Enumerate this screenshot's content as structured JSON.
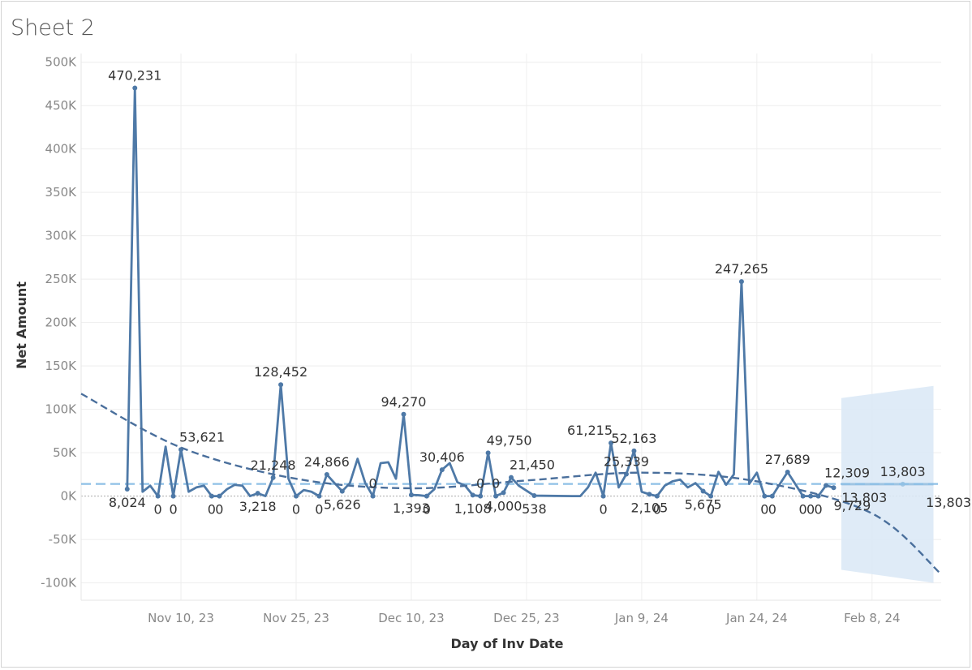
{
  "sheet": {
    "title": "Sheet 2"
  },
  "colors": {
    "line": "#4e79a7",
    "trend": "#4a6f9c",
    "forecast_band": "#dbe9f6",
    "forecast_line": "#9fc5e3",
    "reference_line": "#8ec0e6",
    "grid": "#eeeeee",
    "zero_line": "#aaaaaa"
  },
  "chart_data": {
    "type": "line",
    "title": "",
    "xlabel": "Day of Inv Date",
    "ylabel": "Net Amount",
    "ylim": [
      -120000,
      510000
    ],
    "xlim": [
      "2023-10-28",
      "2024-02-17"
    ],
    "y_ticks": [
      -100000,
      -50000,
      0,
      50000,
      100000,
      150000,
      200000,
      250000,
      300000,
      350000,
      400000,
      450000,
      500000
    ],
    "y_tick_labels": [
      "-100K",
      "-50K",
      "0K",
      "50K",
      "100K",
      "150K",
      "200K",
      "250K",
      "300K",
      "350K",
      "400K",
      "450K",
      "500K"
    ],
    "x_ticks": [
      "2023-11-10",
      "2023-11-25",
      "2023-12-10",
      "2023-12-25",
      "2024-01-09",
      "2024-01-24",
      "2024-02-08"
    ],
    "x_tick_labels": [
      "Nov 10, 23",
      "Nov 25, 23",
      "Dec 10, 23",
      "Dec 25, 23",
      "Jan 9, 24",
      "Jan 24, 24",
      "Feb 8, 24"
    ],
    "grid": true,
    "reference_line": {
      "value": 14000,
      "style": "dashed"
    },
    "series": [
      {
        "values": [
          [
            "2023-11-03",
            8024
          ],
          [
            "2023-11-04",
            470231
          ],
          [
            "2023-11-05",
            5000
          ],
          [
            "2023-11-06",
            12000
          ],
          [
            "2023-11-07",
            0
          ],
          [
            "2023-11-08",
            57000
          ],
          [
            "2023-11-09",
            0
          ],
          [
            "2023-11-10",
            53621
          ],
          [
            "2023-11-11",
            5000
          ],
          [
            "2023-11-12",
            10000
          ],
          [
            "2023-11-13",
            12000
          ],
          [
            "2023-11-14",
            0
          ],
          [
            "2023-11-15",
            0
          ],
          [
            "2023-11-16",
            8000
          ],
          [
            "2023-11-17",
            13000
          ],
          [
            "2023-11-18",
            12000
          ],
          [
            "2023-11-19",
            0
          ],
          [
            "2023-11-20",
            3218
          ],
          [
            "2023-11-21",
            0
          ],
          [
            "2023-11-22",
            21248
          ],
          [
            "2023-11-23",
            128452
          ],
          [
            "2023-11-24",
            20000
          ],
          [
            "2023-11-25",
            0
          ],
          [
            "2023-11-26",
            7000
          ],
          [
            "2023-11-27",
            5000
          ],
          [
            "2023-11-28",
            0
          ],
          [
            "2023-11-29",
            24866
          ],
          [
            "2023-11-30",
            15000
          ],
          [
            "2023-12-01",
            5626
          ],
          [
            "2023-12-02",
            15000
          ],
          [
            "2023-12-03",
            43000
          ],
          [
            "2023-12-04",
            15000
          ],
          [
            "2023-12-05",
            0
          ],
          [
            "2023-12-06",
            38000
          ],
          [
            "2023-12-07",
            39000
          ],
          [
            "2023-12-08",
            20000
          ],
          [
            "2023-12-09",
            94270
          ],
          [
            "2023-12-10",
            1393
          ],
          [
            "2023-12-11",
            1000
          ],
          [
            "2023-12-12",
            0
          ],
          [
            "2023-12-13",
            8000
          ],
          [
            "2023-12-14",
            30406
          ],
          [
            "2023-12-15",
            38000
          ],
          [
            "2023-12-16",
            16000
          ],
          [
            "2023-12-17",
            12000
          ],
          [
            "2023-12-18",
            1108
          ],
          [
            "2023-12-19",
            0
          ],
          [
            "2023-12-20",
            49750
          ],
          [
            "2023-12-21",
            0
          ],
          [
            "2023-12-22",
            4000
          ],
          [
            "2023-12-23",
            21450
          ],
          [
            "2023-12-24",
            12000
          ],
          [
            "2023-12-26",
            538
          ],
          [
            "2023-12-31",
            0
          ],
          [
            "2024-01-01",
            0
          ],
          [
            "2024-01-02",
            10000
          ],
          [
            "2024-01-03",
            27000
          ],
          [
            "2024-01-04",
            0
          ],
          [
            "2024-01-05",
            61215
          ],
          [
            "2024-01-06",
            10000
          ],
          [
            "2024-01-07",
            25339
          ],
          [
            "2024-01-08",
            52163
          ],
          [
            "2024-01-09",
            5000
          ],
          [
            "2024-01-10",
            2105
          ],
          [
            "2024-01-11",
            0
          ],
          [
            "2024-01-12",
            12000
          ],
          [
            "2024-01-13",
            17000
          ],
          [
            "2024-01-14",
            19000
          ],
          [
            "2024-01-15",
            10000
          ],
          [
            "2024-01-16",
            15000
          ],
          [
            "2024-01-17",
            5675
          ],
          [
            "2024-01-18",
            0
          ],
          [
            "2024-01-19",
            28000
          ],
          [
            "2024-01-20",
            13000
          ],
          [
            "2024-01-21",
            25000
          ],
          [
            "2024-01-22",
            247265
          ],
          [
            "2024-01-23",
            14000
          ],
          [
            "2024-01-24",
            27000
          ],
          [
            "2024-01-25",
            0
          ],
          [
            "2024-01-26",
            0
          ],
          [
            "2024-01-27",
            14000
          ],
          [
            "2024-01-28",
            27689
          ],
          [
            "2024-01-29",
            14000
          ],
          [
            "2024-01-30",
            0
          ],
          [
            "2024-01-31",
            0
          ],
          [
            "2024-02-01",
            0
          ],
          [
            "2024-02-02",
            12309
          ],
          [
            "2024-02-03",
            9729
          ]
        ]
      }
    ],
    "forecast": {
      "values": [
        [
          "2024-02-04",
          13803
        ],
        [
          "2024-02-16",
          13803
        ]
      ],
      "upper": [
        [
          "2024-02-04",
          113000
        ],
        [
          "2024-02-16",
          127000
        ]
      ],
      "lower": [
        [
          "2024-02-04",
          -85000
        ],
        [
          "2024-02-16",
          -100000
        ]
      ]
    },
    "trend_line": {
      "type": "polynomial",
      "values": [
        [
          "2023-10-28",
          118000
        ],
        [
          "2023-11-10",
          56000
        ],
        [
          "2023-11-25",
          20000
        ],
        [
          "2023-12-10",
          9000
        ],
        [
          "2023-12-25",
          18000
        ],
        [
          "2024-01-09",
          27000
        ],
        [
          "2024-01-24",
          17000
        ],
        [
          "2024-02-08",
          -20000
        ],
        [
          "2024-02-17",
          -90000
        ]
      ]
    },
    "data_labels": [
      {
        "x": "2023-11-03",
        "y": 8024,
        "text": "8,024",
        "pos": "below"
      },
      {
        "x": "2023-11-04",
        "y": 470231,
        "text": "470,231",
        "pos": "above"
      },
      {
        "x": "2023-11-07",
        "y": 0,
        "text": "0",
        "pos": "below"
      },
      {
        "x": "2023-11-09",
        "y": 0,
        "text": "0",
        "pos": "below"
      },
      {
        "x": "2023-11-10",
        "y": 53621,
        "text": "53,621",
        "pos": "above-right"
      },
      {
        "x": "2023-11-14",
        "y": 0,
        "text": "0",
        "pos": "below"
      },
      {
        "x": "2023-11-15",
        "y": 0,
        "text": "0",
        "pos": "below"
      },
      {
        "x": "2023-11-20",
        "y": 3218,
        "text": "3,218",
        "pos": "below"
      },
      {
        "x": "2023-11-22",
        "y": 21248,
        "text": "21,248",
        "pos": "above"
      },
      {
        "x": "2023-11-23",
        "y": 128452,
        "text": "128,452",
        "pos": "above"
      },
      {
        "x": "2023-11-25",
        "y": 0,
        "text": "0",
        "pos": "below"
      },
      {
        "x": "2023-11-28",
        "y": 0,
        "text": "0",
        "pos": "below"
      },
      {
        "x": "2023-11-29",
        "y": 24866,
        "text": "24,866",
        "pos": "above"
      },
      {
        "x": "2023-12-01",
        "y": 5626,
        "text": "5,626",
        "pos": "below"
      },
      {
        "x": "2023-12-05",
        "y": 0,
        "text": "0",
        "pos": "above"
      },
      {
        "x": "2023-12-09",
        "y": 94270,
        "text": "94,270",
        "pos": "above"
      },
      {
        "x": "2023-12-10",
        "y": 1393,
        "text": "1,393",
        "pos": "below"
      },
      {
        "x": "2023-12-12",
        "y": 0,
        "text": "0",
        "pos": "below"
      },
      {
        "x": "2023-12-14",
        "y": 30406,
        "text": "30,406",
        "pos": "above"
      },
      {
        "x": "2023-12-18",
        "y": 1108,
        "text": "1,108",
        "pos": "below"
      },
      {
        "x": "2023-12-19",
        "y": 0,
        "text": "0",
        "pos": "above"
      },
      {
        "x": "2023-12-20",
        "y": 49750,
        "text": "49,750",
        "pos": "above-right"
      },
      {
        "x": "2023-12-21",
        "y": 0,
        "text": "0",
        "pos": "above"
      },
      {
        "x": "2023-12-22",
        "y": 4000,
        "text": "4,000",
        "pos": "below"
      },
      {
        "x": "2023-12-23",
        "y": 21450,
        "text": "21,450",
        "pos": "above-right"
      },
      {
        "x": "2023-12-26",
        "y": 538,
        "text": "538",
        "pos": "below"
      },
      {
        "x": "2024-01-04",
        "y": 0,
        "text": "0",
        "pos": "below"
      },
      {
        "x": "2024-01-05",
        "y": 61215,
        "text": "61,215",
        "pos": "above-left"
      },
      {
        "x": "2024-01-07",
        "y": 25339,
        "text": "25,339",
        "pos": "above"
      },
      {
        "x": "2024-01-08",
        "y": 52163,
        "text": "52,163",
        "pos": "above"
      },
      {
        "x": "2024-01-10",
        "y": 2105,
        "text": "2,105",
        "pos": "below"
      },
      {
        "x": "2024-01-11",
        "y": 0,
        "text": "0",
        "pos": "below"
      },
      {
        "x": "2024-01-17",
        "y": 5675,
        "text": "5,675",
        "pos": "below"
      },
      {
        "x": "2024-01-18",
        "y": 0,
        "text": "0",
        "pos": "below"
      },
      {
        "x": "2024-01-22",
        "y": 247265,
        "text": "247,265",
        "pos": "above"
      },
      {
        "x": "2024-01-25",
        "y": 0,
        "text": "0",
        "pos": "below"
      },
      {
        "x": "2024-01-26",
        "y": 0,
        "text": "0",
        "pos": "below"
      },
      {
        "x": "2024-01-28",
        "y": 27689,
        "text": "27,689",
        "pos": "above"
      },
      {
        "x": "2024-01-30",
        "y": 0,
        "text": "0",
        "pos": "below"
      },
      {
        "x": "2024-01-31",
        "y": 0,
        "text": "0",
        "pos": "below"
      },
      {
        "x": "2024-02-01",
        "y": 0,
        "text": "0",
        "pos": "below"
      },
      {
        "x": "2024-02-02",
        "y": 12309,
        "text": "12,309",
        "pos": "above-right"
      },
      {
        "x": "2024-02-03",
        "y": 9729,
        "text": "9,729",
        "pos": "below-right"
      },
      {
        "x": "2024-02-07",
        "y": 13803,
        "text": "13,803",
        "pos": "below"
      },
      {
        "x": "2024-02-12",
        "y": 13803,
        "text": "13,803",
        "pos": "above"
      },
      {
        "x": "2024-02-15",
        "y": 13803,
        "text": "13,803",
        "pos": "below-right"
      }
    ]
  }
}
